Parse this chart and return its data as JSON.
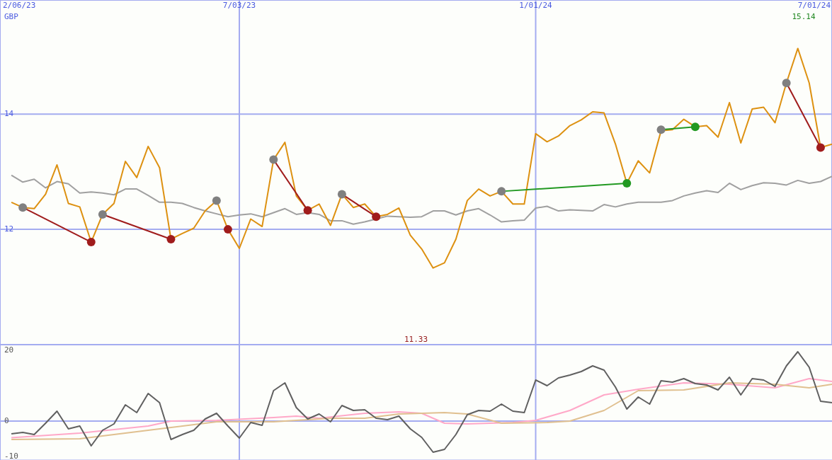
{
  "chart_data": [
    {
      "type": "line",
      "ylabel": "GBP",
      "x": [
        "2023-02-13",
        "2023-02-20",
        "2023-02-27",
        "2023-03-06",
        "2023-03-13",
        "2023-03-20",
        "2023-03-27",
        "2023-04-03",
        "2023-04-10",
        "2023-04-17",
        "2023-04-24",
        "2023-05-01",
        "2023-05-08",
        "2023-05-15",
        "2023-05-22",
        "2023-05-29",
        "2023-06-05",
        "2023-06-12",
        "2023-06-19",
        "2023-06-26",
        "2023-07-03",
        "2023-07-10",
        "2023-07-17",
        "2023-07-24",
        "2023-07-31",
        "2023-08-07",
        "2023-08-14",
        "2023-08-21",
        "2023-08-28",
        "2023-09-04",
        "2023-09-11",
        "2023-09-18",
        "2023-09-25",
        "2023-10-02",
        "2023-10-09",
        "2023-10-16",
        "2023-10-23",
        "2023-10-30",
        "2023-11-06",
        "2023-11-13",
        "2023-11-20",
        "2023-11-27",
        "2023-12-04",
        "2023-12-11",
        "2023-12-18",
        "2023-12-25",
        "2024-01-01",
        "2024-01-08",
        "2024-01-15",
        "2024-01-22",
        "2024-01-29",
        "2024-02-05",
        "2024-02-12",
        "2024-02-19",
        "2024-02-26",
        "2024-03-04",
        "2024-03-11",
        "2024-03-18",
        "2024-03-25",
        "2024-04-01",
        "2024-04-08",
        "2024-04-15",
        "2024-04-22",
        "2024-04-29",
        "2024-05-06",
        "2024-05-13",
        "2024-05-20",
        "2024-05-27",
        "2024-06-03",
        "2024-06-10",
        "2024-06-17",
        "2024-06-24",
        "2024-07-01"
      ],
      "xlim": [
        "2023-02-06",
        "2024-07-01"
      ],
      "xticks": [
        {
          "value": "2023-02-06",
          "label": "2/06/23"
        },
        {
          "value": "2023-07-03",
          "label": "7/03/23"
        },
        {
          "value": "2024-01-01",
          "label": "1/01/24"
        },
        {
          "value": "2024-07-01",
          "label": "7/01/24"
        }
      ],
      "ylim": [
        10,
        15.98
      ],
      "yticks": [
        12,
        14
      ],
      "grid": true,
      "series": [
        {
          "color": "#a0a0a0",
          "values": [
            12.94,
            12.82,
            12.87,
            12.72,
            12.83,
            12.79,
            12.63,
            12.65,
            12.63,
            12.6,
            12.7,
            12.7,
            12.59,
            12.47,
            12.47,
            12.45,
            12.38,
            12.32,
            12.27,
            12.22,
            12.25,
            12.27,
            12.22,
            12.29,
            12.36,
            12.26,
            12.29,
            12.26,
            12.15,
            12.15,
            12.09,
            12.13,
            12.18,
            12.23,
            12.22,
            12.21,
            12.22,
            12.32,
            12.32,
            12.25,
            12.32,
            12.36,
            12.25,
            12.13,
            12.15,
            12.16,
            12.37,
            12.4,
            12.32,
            12.34,
            12.33,
            12.32,
            12.43,
            12.39,
            12.44,
            12.47,
            12.47,
            12.47,
            12.5,
            12.58,
            12.63,
            12.67,
            12.64,
            12.8,
            12.69,
            12.76,
            12.81,
            12.8,
            12.77,
            12.85,
            12.8,
            12.83,
            12.92
          ]
        },
        {
          "color": "#dd9111",
          "values": [
            12.47,
            12.38,
            12.36,
            12.61,
            13.12,
            12.45,
            12.39,
            11.78,
            12.26,
            12.45,
            13.18,
            12.9,
            13.44,
            13.07,
            11.83,
            11.93,
            12.02,
            12.32,
            12.5,
            12.0,
            11.67,
            12.18,
            12.05,
            13.21,
            13.51,
            12.58,
            12.33,
            12.44,
            12.07,
            12.61,
            12.38,
            12.44,
            12.22,
            12.26,
            12.37,
            11.9,
            11.66,
            11.33,
            11.42,
            11.83,
            12.5,
            12.7,
            12.58,
            12.66,
            12.44,
            12.44,
            13.66,
            13.52,
            13.62,
            13.8,
            13.9,
            14.04,
            14.02,
            13.48,
            12.8,
            13.19,
            12.98,
            13.71,
            13.73,
            13.91,
            13.78,
            13.8,
            13.6,
            14.2,
            13.5,
            14.09,
            14.12,
            13.85,
            14.54,
            15.14,
            14.54,
            13.42,
            13.48
          ]
        },
        {
          "color": "#a01c1c",
          "x": [
            "2023-02-20",
            "2023-04-03"
          ],
          "values": [
            12.38,
            11.78
          ]
        },
        {
          "color": "#a01c1c",
          "x": [
            "2023-04-10",
            "2023-05-22"
          ],
          "values": [
            12.26,
            11.83
          ]
        },
        {
          "color": "#a01c1c",
          "x": [
            "2023-07-24",
            "2023-08-14"
          ],
          "values": [
            13.21,
            12.33
          ]
        },
        {
          "color": "#a01c1c",
          "x": [
            "2023-09-04",
            "2023-09-25"
          ],
          "values": [
            12.61,
            12.22
          ]
        },
        {
          "color": "#a01c1c",
          "x": [
            "2024-06-03",
            "2024-06-24"
          ],
          "values": [
            14.54,
            13.42
          ]
        },
        {
          "color": "#229922",
          "x": [
            "2023-12-11",
            "2024-02-26"
          ],
          "values": [
            12.66,
            12.8
          ]
        },
        {
          "color": "#229922",
          "x": [
            "2024-03-18",
            "2024-04-08"
          ],
          "values": [
            13.73,
            13.78
          ]
        },
        {
          "type": "scatter",
          "marker": "circle",
          "color": "#808080",
          "x": [
            "2023-02-20",
            "2023-04-10",
            "2023-06-19",
            "2023-07-24",
            "2023-09-04",
            "2023-12-11",
            "2024-03-18",
            "2024-06-03"
          ],
          "values": [
            12.38,
            12.26,
            12.5,
            13.21,
            12.61,
            12.66,
            13.73,
            14.54
          ]
        },
        {
          "type": "scatter",
          "marker": "circle",
          "color": "#a01c1c",
          "x": [
            "2023-04-03",
            "2023-05-22",
            "2023-06-26",
            "2023-08-14",
            "2023-09-25",
            "2024-06-24"
          ],
          "values": [
            11.78,
            11.83,
            12.0,
            12.33,
            12.22,
            13.42
          ]
        },
        {
          "type": "scatter",
          "marker": "circle",
          "color": "#229922",
          "x": [
            "2024-02-26",
            "2024-04-08"
          ],
          "values": [
            12.8,
            13.78
          ]
        }
      ],
      "annotations": [
        "15.14",
        "11.33"
      ]
    },
    {
      "type": "line",
      "x": [
        "2023-02-13",
        "2023-02-20",
        "2023-02-27",
        "2023-03-06",
        "2023-03-13",
        "2023-03-20",
        "2023-03-27",
        "2023-04-03",
        "2023-04-10",
        "2023-04-17",
        "2023-04-24",
        "2023-05-01",
        "2023-05-08",
        "2023-05-15",
        "2023-05-22",
        "2023-05-29",
        "2023-06-05",
        "2023-06-12",
        "2023-06-19",
        "2023-06-26",
        "2023-07-03",
        "2023-07-10",
        "2023-07-17",
        "2023-07-24",
        "2023-07-31",
        "2023-08-07",
        "2023-08-14",
        "2023-08-21",
        "2023-08-28",
        "2023-09-04",
        "2023-09-11",
        "2023-09-18",
        "2023-09-25",
        "2023-10-02",
        "2023-10-09",
        "2023-10-16",
        "2023-10-23",
        "2023-10-30",
        "2023-11-06",
        "2023-11-13",
        "2023-11-20",
        "2023-11-27",
        "2023-12-04",
        "2023-12-11",
        "2023-12-18",
        "2023-12-25",
        "2024-01-01",
        "2024-01-08",
        "2024-01-15",
        "2024-01-22",
        "2024-01-29",
        "2024-02-05",
        "2024-02-12",
        "2024-02-19",
        "2024-02-26",
        "2024-03-04",
        "2024-03-11",
        "2024-03-18",
        "2024-03-25",
        "2024-04-01",
        "2024-04-08",
        "2024-04-15",
        "2024-04-22",
        "2024-04-29",
        "2024-05-06",
        "2024-05-13",
        "2024-05-20",
        "2024-05-27",
        "2024-06-03",
        "2024-06-10",
        "2024-06-17",
        "2024-06-24",
        "2024-07-01"
      ],
      "xlim": [
        "2023-02-06",
        "2024-07-01"
      ],
      "xticks": [
        {
          "value": "2023-07-03",
          "label": null
        },
        {
          "value": "2024-01-01",
          "label": null
        }
      ],
      "ylim": [
        -11,
        21.6
      ],
      "yticks": [
        -10,
        0,
        20
      ],
      "grid": "x",
      "tick_labels": "y",
      "ref_lines": [
        {
          "axis": "y",
          "value": 0
        }
      ],
      "series": [
        {
          "color": "#ffa8c8",
          "x": [
            "2023-02-13",
            "2023-03-27",
            "2023-05-08",
            "2023-05-22",
            "2023-06-19",
            "2023-07-24",
            "2023-08-07",
            "2023-08-21",
            "2023-09-18",
            "2023-10-09",
            "2023-10-23",
            "2023-11-06",
            "2023-11-20",
            "2023-12-18",
            "2024-01-01",
            "2024-01-22",
            "2024-02-12",
            "2024-03-04",
            "2024-04-01",
            "2024-04-29",
            "2024-05-27",
            "2024-06-17",
            "2024-07-01"
          ],
          "values": [
            -4.7,
            -3.4,
            -1.4,
            0,
            0.2,
            1,
            1.4,
            0.8,
            2.2,
            2.6,
            2.2,
            -0.6,
            -0.8,
            -0.4,
            0.2,
            3,
            7.4,
            9,
            10.8,
            10.4,
            9.4,
            12,
            11.2
          ]
        },
        {
          "color": "#e0c090",
          "x": [
            "2023-02-13",
            "2023-03-27",
            "2023-05-08",
            "2023-06-19",
            "2023-07-24",
            "2023-08-28",
            "2023-09-18",
            "2023-10-09",
            "2023-11-06",
            "2023-11-20",
            "2023-12-11",
            "2024-01-08",
            "2024-01-22",
            "2024-02-12",
            "2024-03-04",
            "2024-04-01",
            "2024-04-29",
            "2024-05-27",
            "2024-06-17",
            "2024-07-01"
          ],
          "values": [
            -5.2,
            -5,
            -2.6,
            -0.2,
            -0.2,
            0.8,
            0.8,
            2,
            2.4,
            2,
            -0.6,
            -0.4,
            0,
            3,
            8.6,
            8.8,
            10.8,
            10.4,
            9.4,
            10.4
          ]
        },
        {
          "color": "#606060",
          "values": [
            -3.6,
            -3.2,
            -3.8,
            -0.6,
            2.8,
            -2.2,
            -1.4,
            -7,
            -2.6,
            -0.8,
            4.6,
            2.4,
            7.8,
            5.2,
            -5.2,
            -3.8,
            -2.6,
            0.6,
            2.2,
            -1.4,
            -4.8,
            -0.4,
            -1.2,
            8.6,
            10.8,
            3.8,
            0.6,
            2,
            -0.2,
            4.4,
            3,
            3.2,
            0.8,
            0.4,
            1.4,
            -2.2,
            -4.6,
            -8.8,
            -8,
            -3.8,
            1.8,
            3,
            2.8,
            4.8,
            2.8,
            2.4,
            11.6,
            10,
            12.2,
            13,
            14,
            15.6,
            14.4,
            9.6,
            3.4,
            6.8,
            4.8,
            11.4,
            11,
            12,
            10.6,
            10.2,
            8.8,
            12.4,
            7.4,
            12,
            11.6,
            9.8,
            15.6,
            19.6,
            15.2,
            5.6,
            5.2
          ]
        }
      ]
    }
  ]
}
